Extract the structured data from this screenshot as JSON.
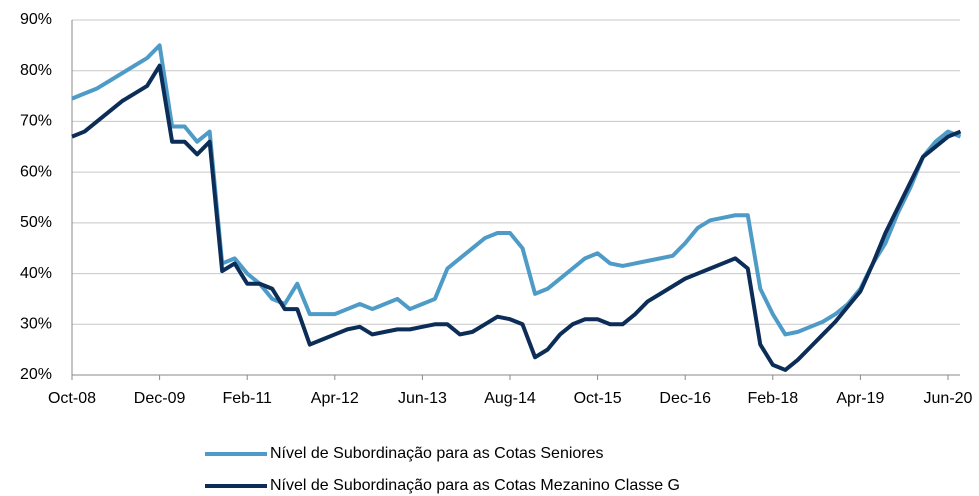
{
  "chart_data": {
    "type": "line",
    "x": [
      "Oct-08",
      null,
      null,
      null,
      null,
      null,
      null,
      "Dec-09",
      null,
      null,
      null,
      null,
      null,
      null,
      "Feb-11",
      null,
      null,
      null,
      null,
      null,
      null,
      "Apr-12",
      null,
      null,
      null,
      null,
      null,
      null,
      "Jun-13",
      null,
      null,
      null,
      null,
      null,
      null,
      "Aug-14",
      null,
      null,
      null,
      null,
      null,
      null,
      "Oct-15",
      null,
      null,
      null,
      null,
      null,
      null,
      "Dec-16",
      null,
      null,
      null,
      null,
      null,
      null,
      "Feb-18",
      null,
      null,
      null,
      null,
      null,
      null,
      "Apr-19",
      null,
      null,
      null,
      null,
      null,
      null,
      "Jun-20",
      null
    ],
    "series": [
      {
        "name": "Nível de Subordinação para as Cotas Seniores",
        "color": "#4f9bc8",
        "values": [
          74.5,
          75.5,
          76.5,
          78,
          79.5,
          81,
          82.5,
          85,
          69,
          69,
          66,
          68,
          42,
          43,
          40,
          38,
          35,
          34,
          38,
          32,
          32,
          32,
          33,
          34,
          33,
          34,
          35,
          33,
          34,
          35,
          41,
          43,
          45,
          47,
          48,
          48,
          45,
          36,
          37,
          39,
          41,
          43,
          44,
          42,
          41.5,
          42,
          42.5,
          43,
          43.5,
          46,
          49,
          50.5,
          51,
          51.5,
          51.5,
          37,
          32,
          28,
          28.5,
          29.5,
          30.5,
          32,
          34,
          37,
          42,
          46,
          52,
          57,
          63,
          66,
          68,
          67
        ]
      },
      {
        "name": "Nível de Subordinação para as Cotas Mezanino Classe G",
        "color": "#0c2d57",
        "values": [
          67,
          68,
          70,
          72,
          74,
          75.5,
          77,
          81,
          66,
          66,
          63.5,
          66,
          40.5,
          42,
          38,
          38,
          37,
          33,
          33,
          26,
          27,
          28,
          29,
          29.5,
          28,
          28.5,
          29,
          29,
          29.5,
          30,
          30,
          28,
          28.5,
          30,
          31.5,
          31,
          30,
          23.5,
          25,
          28,
          30,
          31,
          31,
          30,
          30,
          32,
          34.5,
          36,
          37.5,
          39,
          40,
          41,
          42,
          43,
          41,
          26,
          22,
          21,
          23,
          25.5,
          28,
          30.5,
          33.5,
          36.5,
          42,
          48,
          53,
          58,
          63,
          65,
          67,
          68
        ]
      }
    ],
    "ylim": [
      20,
      90
    ],
    "yticks": [
      {
        "value": 20,
        "label": "20%"
      },
      {
        "value": 30,
        "label": "30%"
      },
      {
        "value": 40,
        "label": "40%"
      },
      {
        "value": 50,
        "label": "50%"
      },
      {
        "value": 60,
        "label": "60%"
      },
      {
        "value": 70,
        "label": "70%"
      },
      {
        "value": 80,
        "label": "80%"
      },
      {
        "value": 90,
        "label": "90%"
      }
    ],
    "grid": true,
    "legend": "bottom"
  }
}
